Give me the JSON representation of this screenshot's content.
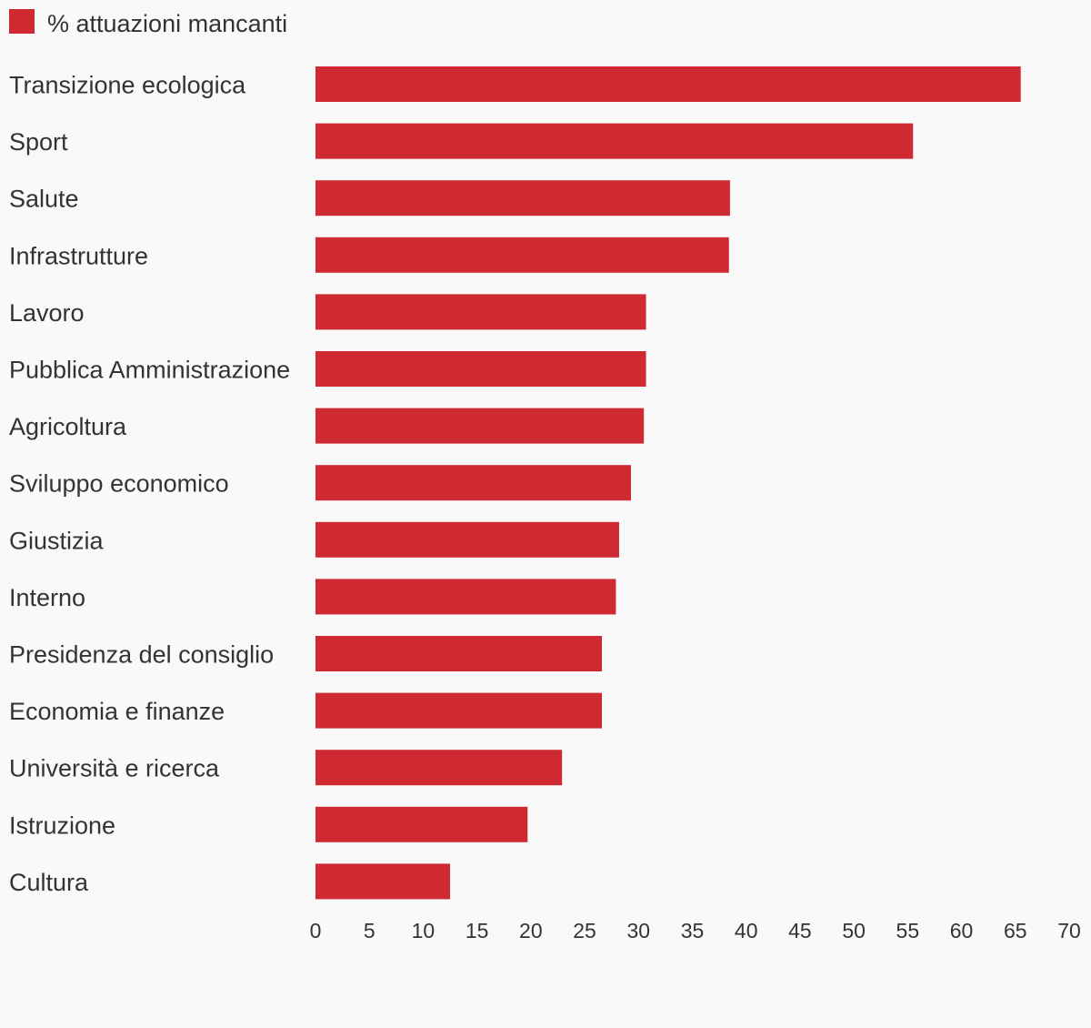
{
  "colors": {
    "bar": "#cf2a31",
    "text": "#333333",
    "background": "#f9f9f9"
  },
  "chart_data": {
    "type": "bar",
    "orientation": "horizontal",
    "categories": [
      "Transizione ecologica",
      "Sport",
      "Salute",
      "Infrastrutture",
      "Lavoro",
      "Pubblica Amministrazione",
      "Agricoltura",
      "Sviluppo economico",
      "Giustizia",
      "Interno",
      "Presidenza del consiglio",
      "Economia e finanze",
      "Università e ricerca",
      "Istruzione",
      "Cultura"
    ],
    "series": [
      {
        "name": "% attuazioni mancanti",
        "values": [
          65.5,
          55.5,
          38.5,
          38.4,
          30.7,
          30.7,
          30.5,
          29.3,
          28.2,
          27.9,
          26.6,
          26.6,
          22.9,
          19.7,
          12.5
        ]
      }
    ],
    "xlim": [
      0,
      70
    ],
    "xticks": [
      "0",
      "5",
      "10",
      "15",
      "20",
      "25",
      "30",
      "35",
      "40",
      "45",
      "50",
      "55",
      "60",
      "65",
      "70"
    ],
    "grid": false,
    "legend_position": "top-left"
  }
}
